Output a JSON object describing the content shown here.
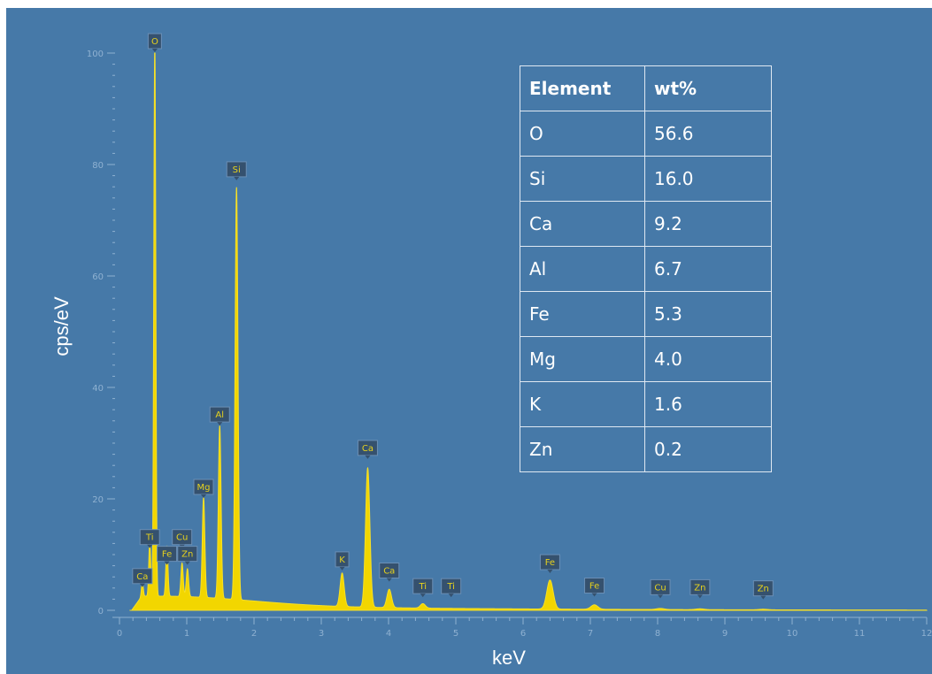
{
  "chart_data": {
    "type": "line",
    "xlabel": "keV",
    "ylabel": "cps/eV",
    "xlim": [
      0,
      12
    ],
    "ylim": [
      0,
      100
    ],
    "x_ticks": [
      0,
      1,
      2,
      3,
      4,
      5,
      6,
      7,
      8,
      9,
      10,
      11,
      12
    ],
    "y_ticks": [
      0,
      20,
      40,
      60,
      80,
      100
    ],
    "line_color": "#f2d600",
    "background_color": "#4679a8",
    "peaks": [
      {
        "keV": 0.34,
        "cps": 2.5
      },
      {
        "keV": 0.45,
        "cps": 10
      },
      {
        "keV": 0.525,
        "cps": 100
      },
      {
        "keV": 0.705,
        "cps": 9
      },
      {
        "keV": 0.93,
        "cps": 6
      },
      {
        "keV": 1.01,
        "cps": 5
      },
      {
        "keV": 1.25,
        "cps": 18
      },
      {
        "keV": 1.49,
        "cps": 31
      },
      {
        "keV": 1.74,
        "cps": 74
      },
      {
        "keV": 3.31,
        "cps": 6
      },
      {
        "keV": 3.69,
        "cps": 25
      },
      {
        "keV": 4.01,
        "cps": 3.3
      },
      {
        "keV": 4.51,
        "cps": 0.8
      },
      {
        "keV": 6.4,
        "cps": 5.2
      },
      {
        "keV": 7.06,
        "cps": 0.8
      },
      {
        "keV": 8.04,
        "cps": 0.2
      },
      {
        "keV": 8.63,
        "cps": 0.15
      },
      {
        "keV": 9.57,
        "cps": 0.1
      }
    ],
    "annotations": [
      {
        "label": "O",
        "keV": 0.525,
        "cps": 100
      },
      {
        "label": "Si",
        "keV": 1.74,
        "cps": 77
      },
      {
        "label": "Al",
        "keV": 1.49,
        "cps": 33
      },
      {
        "label": "Mg",
        "keV": 1.25,
        "cps": 20
      },
      {
        "label": "Ca",
        "keV": 3.69,
        "cps": 27
      },
      {
        "label": "Ti",
        "keV": 0.45,
        "cps": 11
      },
      {
        "label": "Cu",
        "keV": 0.93,
        "cps": 11
      },
      {
        "label": "Fe",
        "keV": 0.705,
        "cps": 8
      },
      {
        "label": "Zn",
        "keV": 1.01,
        "cps": 8
      },
      {
        "label": "Ca",
        "keV": 0.34,
        "cps": 4
      },
      {
        "label": "K",
        "keV": 3.31,
        "cps": 7
      },
      {
        "label": "Ca",
        "keV": 4.01,
        "cps": 5
      },
      {
        "label": "Ti",
        "keV": 4.51,
        "cps": 2.2
      },
      {
        "label": "Ti",
        "keV": 4.93,
        "cps": 2.2
      },
      {
        "label": "Fe",
        "keV": 6.4,
        "cps": 6.5
      },
      {
        "label": "Fe",
        "keV": 7.06,
        "cps": 2.3
      },
      {
        "label": "Cu",
        "keV": 8.04,
        "cps": 2
      },
      {
        "label": "Zn",
        "keV": 8.63,
        "cps": 2
      },
      {
        "label": "Zn",
        "keV": 9.57,
        "cps": 1.8
      }
    ],
    "table": {
      "headers": [
        "Element",
        "wt%"
      ],
      "rows": [
        [
          "O",
          "56.6"
        ],
        [
          "Si",
          "16.0"
        ],
        [
          "Ca",
          "9.2"
        ],
        [
          "Al",
          "6.7"
        ],
        [
          "Fe",
          "5.3"
        ],
        [
          "Mg",
          "4.0"
        ],
        [
          "K",
          "1.6"
        ],
        [
          "Zn",
          "0.2"
        ]
      ]
    }
  }
}
